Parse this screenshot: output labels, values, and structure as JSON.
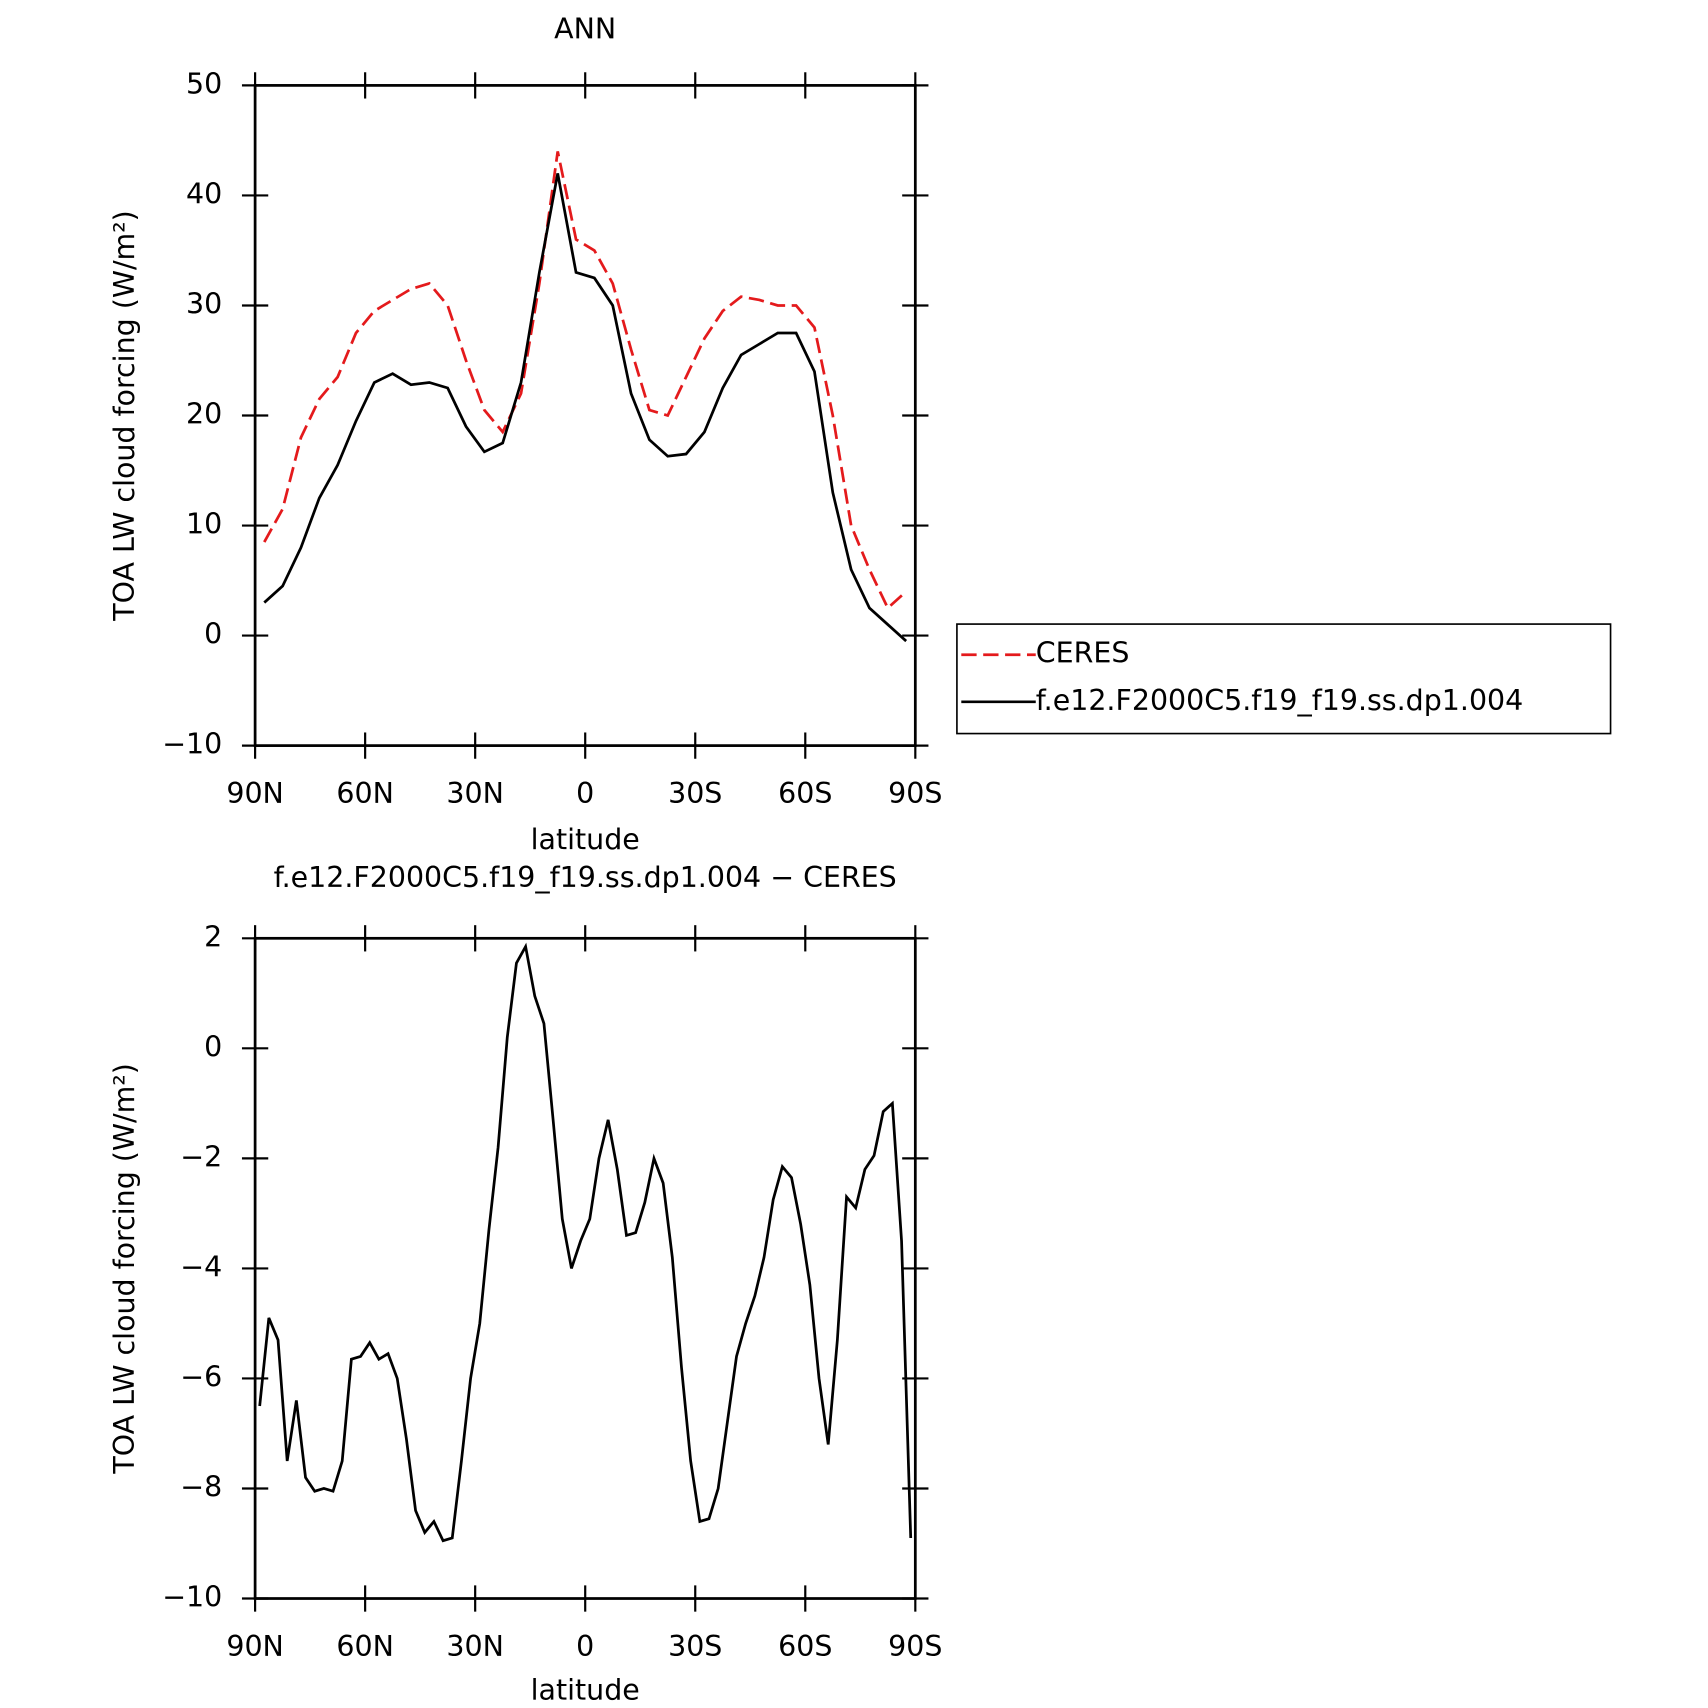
{
  "chart_data": [
    {
      "type": "line",
      "title": "ANN",
      "x_label": "latitude",
      "y_label": "TOA LW cloud forcing (W/m²)",
      "x": [
        87.5,
        82.5,
        77.5,
        72.5,
        67.5,
        62.5,
        57.5,
        52.5,
        47.5,
        42.5,
        37.5,
        32.5,
        27.5,
        22.5,
        17.5,
        12.5,
        7.5,
        2.5,
        -2.5,
        -7.5,
        -12.5,
        -17.5,
        -22.5,
        -27.5,
        -32.5,
        -37.5,
        -42.5,
        -47.5,
        -52.5,
        -57.5,
        -62.5,
        -67.5,
        -72.5,
        -77.5,
        -82.5,
        -87.5
      ],
      "series": [
        {
          "name": "CERES",
          "color": "#e41a1c",
          "dash": "dashed",
          "values": [
            8.5,
            11.5,
            18,
            21.5,
            23.5,
            27.5,
            29.5,
            30.5,
            31.5,
            32,
            30,
            25,
            20.5,
            18.5,
            22,
            32,
            44,
            36,
            35,
            32,
            26,
            20.5,
            20,
            23.5,
            27,
            29.5,
            30.8,
            30.5,
            30,
            30,
            28,
            20,
            10,
            6,
            2.5,
            4
          ]
        },
        {
          "name": "f.e12.F2000C5.f19_f19.ss.dp1.004",
          "color": "#000000",
          "dash": "solid",
          "values": [
            3,
            4.5,
            8,
            12.5,
            15.5,
            19.5,
            23,
            23.8,
            22.8,
            23,
            22.5,
            19,
            16.7,
            17.5,
            23,
            33,
            42,
            33,
            32.5,
            30,
            22,
            17.8,
            16.3,
            16.5,
            18.5,
            22.5,
            25.5,
            26.5,
            27.5,
            27.5,
            24,
            13,
            6,
            2.5,
            1,
            -0.5
          ]
        }
      ],
      "xlim": [
        90,
        -90
      ],
      "xticks": [
        {
          "value": 90,
          "label": "90N"
        },
        {
          "value": 60,
          "label": "60N"
        },
        {
          "value": 30,
          "label": "30N"
        },
        0,
        {
          "value": -30,
          "label": "30S"
        },
        {
          "value": -60,
          "label": "60S"
        },
        {
          "value": -90,
          "label": "90S"
        }
      ],
      "ylim": [
        -10,
        50
      ],
      "yticks": [
        {
          "value": -10,
          "label": "−10"
        },
        0,
        10,
        20,
        30,
        40,
        50
      ],
      "legend": "right"
    },
    {
      "type": "line",
      "title": "f.e12.F2000C5.f19_f19.ss.dp1.004 − CERES",
      "x_label": "latitude",
      "y_label": "TOA LW cloud forcing (W/m²)",
      "x": [
        88.75,
        86.25,
        83.75,
        81.25,
        78.75,
        76.25,
        73.75,
        71.25,
        68.75,
        66.25,
        63.75,
        61.25,
        58.75,
        56.25,
        53.75,
        51.25,
        48.75,
        46.25,
        43.75,
        41.25,
        38.75,
        36.25,
        33.75,
        31.25,
        28.75,
        26.25,
        23.75,
        21.25,
        18.75,
        16.25,
        13.75,
        11.25,
        8.75,
        6.25,
        3.75,
        1.25,
        -1.25,
        -3.75,
        -6.25,
        -8.75,
        -11.25,
        -13.75,
        -16.25,
        -18.75,
        -21.25,
        -23.75,
        -26.25,
        -28.75,
        -31.25,
        -33.75,
        -36.25,
        -38.75,
        -41.25,
        -43.75,
        -46.25,
        -48.75,
        -51.25,
        -53.75,
        -56.25,
        -58.75,
        -61.25,
        -63.75,
        -66.25,
        -68.75,
        -71.25,
        -73.75,
        -76.25,
        -78.75,
        -81.25,
        -83.75,
        -86.25,
        -88.75
      ],
      "series": [
        {
          "name": "f.e12.F2000C5.f19_f19.ss.dp1.004 − CERES",
          "color": "#000000",
          "dash": "solid",
          "values": [
            -6.5,
            -4.9,
            -5.3,
            -7.5,
            -6.4,
            -7.8,
            -8.05,
            -8.0,
            -8.05,
            -7.5,
            -5.65,
            -5.6,
            -5.35,
            -5.65,
            -5.55,
            -6.0,
            -7.1,
            -8.4,
            -8.8,
            -8.6,
            -8.95,
            -8.9,
            -7.5,
            -6.0,
            -5.0,
            -3.3,
            -1.8,
            0.2,
            1.55,
            1.85,
            0.95,
            0.45,
            -1.3,
            -3.1,
            -4.0,
            -3.5,
            -3.1,
            -2.0,
            -1.3,
            -2.2,
            -3.4,
            -3.35,
            -2.8,
            -2.0,
            -2.45,
            -3.8,
            -5.8,
            -7.5,
            -8.6,
            -8.55,
            -8.0,
            -6.8,
            -5.6,
            -5.0,
            -4.5,
            -3.8,
            -2.75,
            -2.15,
            -2.35,
            -3.2,
            -4.3,
            -6.0,
            -7.2,
            -5.3,
            -2.7,
            -2.9,
            -2.2,
            -1.95,
            -1.15,
            -1.0,
            -3.5,
            -8.9
          ]
        }
      ],
      "xlim": [
        90,
        -90
      ],
      "xticks": [
        {
          "value": 90,
          "label": "90N"
        },
        {
          "value": 60,
          "label": "60N"
        },
        {
          "value": 30,
          "label": "30N"
        },
        0,
        {
          "value": -30,
          "label": "30S"
        },
        {
          "value": -60,
          "label": "60S"
        },
        {
          "value": -90,
          "label": "90S"
        }
      ],
      "ylim": [
        -10,
        2
      ],
      "yticks": [
        {
          "value": -10,
          "label": "−10"
        },
        {
          "value": -8,
          "label": "−8"
        },
        {
          "value": -6,
          "label": "−6"
        },
        {
          "value": -4,
          "label": "−4"
        },
        {
          "value": -2,
          "label": "−2"
        },
        0,
        2
      ]
    }
  ]
}
